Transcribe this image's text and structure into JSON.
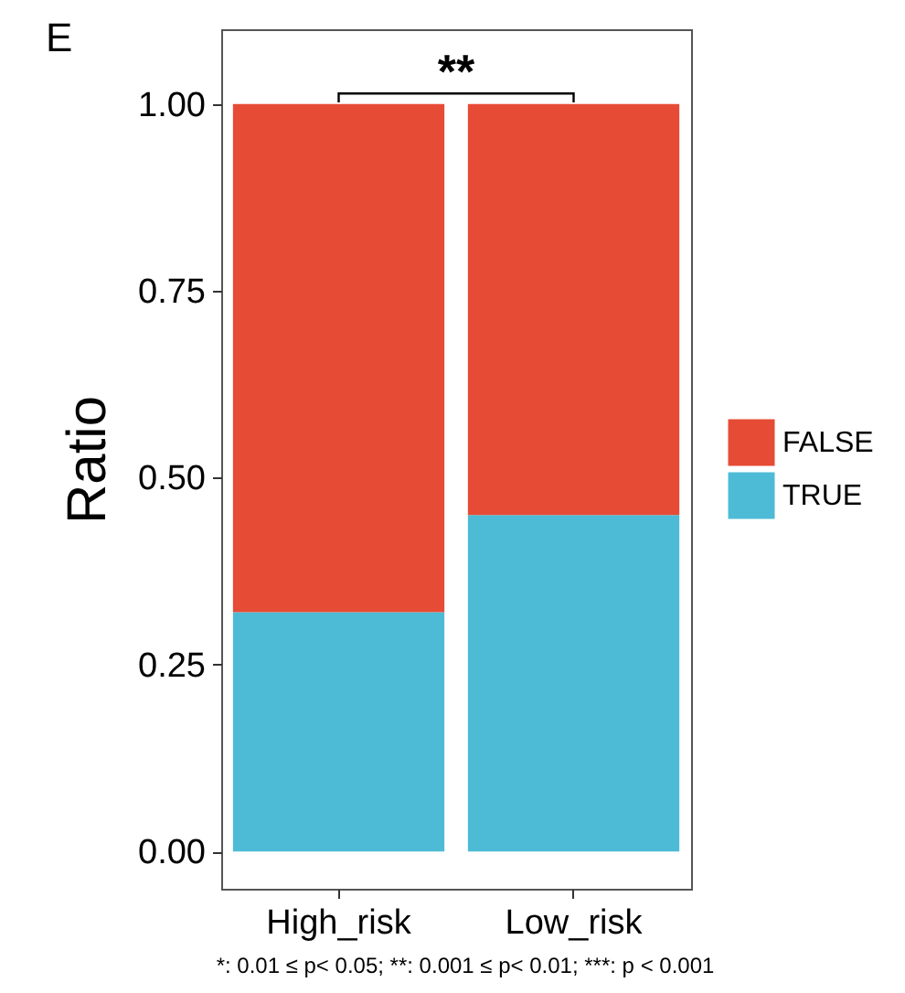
{
  "chart_data": {
    "type": "bar",
    "stacked": true,
    "ylabel": "Ratio",
    "categories": [
      "High_risk",
      "Low_risk"
    ],
    "series": [
      {
        "name": "TRUE",
        "color": "#4dbbd5",
        "values": [
          0.32,
          0.45
        ]
      },
      {
        "name": "FALSE",
        "color": "#e64b35",
        "values": [
          0.68,
          0.55
        ]
      }
    ],
    "ylim": [
      -0.05,
      1.1
    ],
    "yticks": [
      {
        "value": 0,
        "label": "0.00"
      },
      {
        "value": 0.25,
        "label": "0.25"
      },
      {
        "value": 0.5,
        "label": "0.50"
      },
      {
        "value": 0.75,
        "label": "0.75"
      },
      {
        "value": 1,
        "label": "1.00"
      }
    ],
    "grid": false,
    "legend": "right",
    "annotations": [
      "E",
      "**",
      "*: 0.01 ≤ p< 0.05;  **: 0.001 ≤ p< 0.01;  ***: p < 0.001"
    ]
  }
}
